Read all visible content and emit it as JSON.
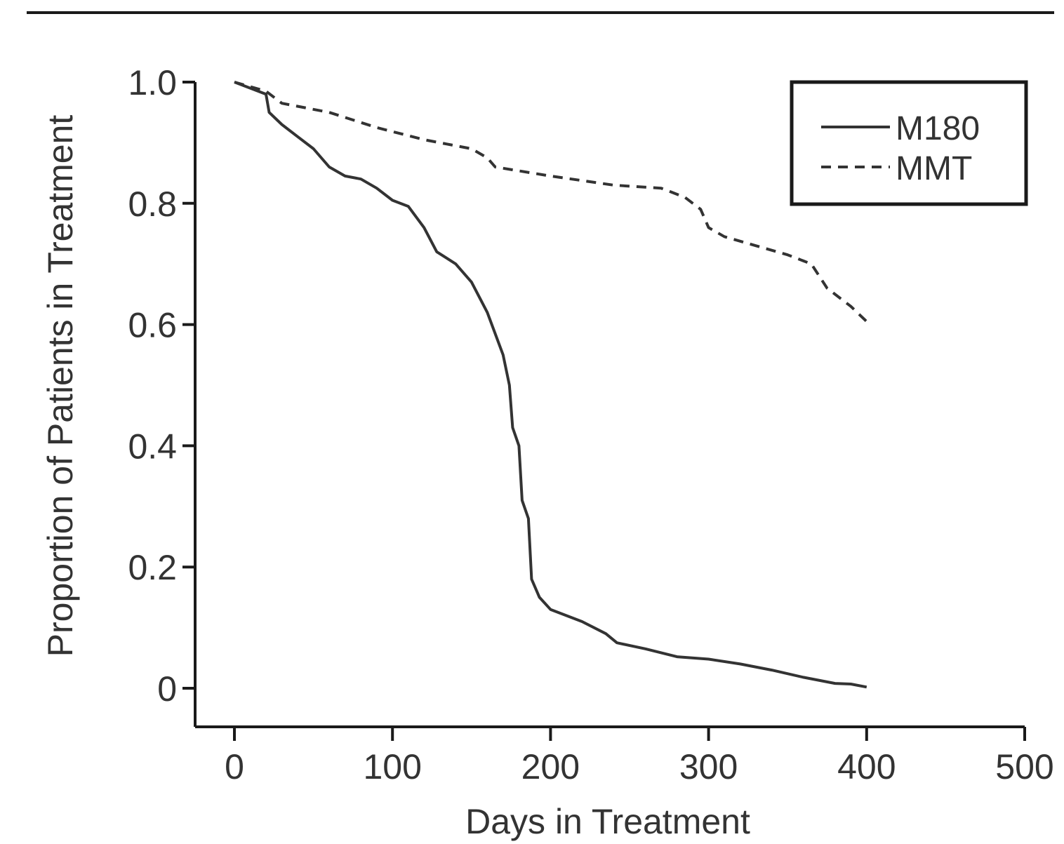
{
  "chart_data": {
    "type": "line",
    "xlabel": "Days in Treatment",
    "ylabel": "Proportion of Patients in Treatment",
    "xlim": [
      0,
      500
    ],
    "ylim": [
      0,
      1.0
    ],
    "x_ticks": [
      0,
      100,
      200,
      300,
      400,
      500
    ],
    "x_tick_labels": [
      "0",
      "100",
      "200",
      "300",
      "400",
      "500"
    ],
    "y_ticks": [
      0,
      0.2,
      0.4,
      0.6,
      0.8,
      1.0
    ],
    "y_tick_labels": [
      "0",
      "0.2",
      "0.4",
      "0.6",
      "0.8",
      "1.0"
    ],
    "grid": false,
    "legend_position": "top-right",
    "series": [
      {
        "name": "M180",
        "style": "solid",
        "color": "#333333",
        "points": [
          [
            0,
            1.0
          ],
          [
            10,
            0.99
          ],
          [
            20,
            0.98
          ],
          [
            22,
            0.95
          ],
          [
            30,
            0.93
          ],
          [
            40,
            0.91
          ],
          [
            50,
            0.89
          ],
          [
            60,
            0.86
          ],
          [
            70,
            0.845
          ],
          [
            80,
            0.84
          ],
          [
            90,
            0.825
          ],
          [
            100,
            0.805
          ],
          [
            110,
            0.795
          ],
          [
            120,
            0.76
          ],
          [
            128,
            0.72
          ],
          [
            140,
            0.7
          ],
          [
            150,
            0.67
          ],
          [
            160,
            0.62
          ],
          [
            170,
            0.55
          ],
          [
            174,
            0.5
          ],
          [
            176,
            0.43
          ],
          [
            180,
            0.4
          ],
          [
            182,
            0.31
          ],
          [
            186,
            0.28
          ],
          [
            188,
            0.18
          ],
          [
            193,
            0.15
          ],
          [
            200,
            0.13
          ],
          [
            220,
            0.11
          ],
          [
            235,
            0.09
          ],
          [
            242,
            0.075
          ],
          [
            260,
            0.065
          ],
          [
            280,
            0.052
          ],
          [
            300,
            0.048
          ],
          [
            320,
            0.04
          ],
          [
            340,
            0.03
          ],
          [
            360,
            0.018
          ],
          [
            380,
            0.008
          ],
          [
            390,
            0.007
          ],
          [
            400,
            0.002
          ]
        ]
      },
      {
        "name": "MMT",
        "style": "dashed",
        "color": "#333333",
        "points": [
          [
            0,
            1.0
          ],
          [
            20,
            0.985
          ],
          [
            30,
            0.965
          ],
          [
            60,
            0.95
          ],
          [
            90,
            0.925
          ],
          [
            120,
            0.905
          ],
          [
            150,
            0.89
          ],
          [
            160,
            0.875
          ],
          [
            165,
            0.86
          ],
          [
            200,
            0.845
          ],
          [
            240,
            0.83
          ],
          [
            270,
            0.825
          ],
          [
            285,
            0.81
          ],
          [
            295,
            0.79
          ],
          [
            300,
            0.76
          ],
          [
            310,
            0.745
          ],
          [
            330,
            0.73
          ],
          [
            350,
            0.715
          ],
          [
            365,
            0.7
          ],
          [
            375,
            0.66
          ],
          [
            390,
            0.63
          ],
          [
            402,
            0.6
          ]
        ]
      }
    ]
  }
}
